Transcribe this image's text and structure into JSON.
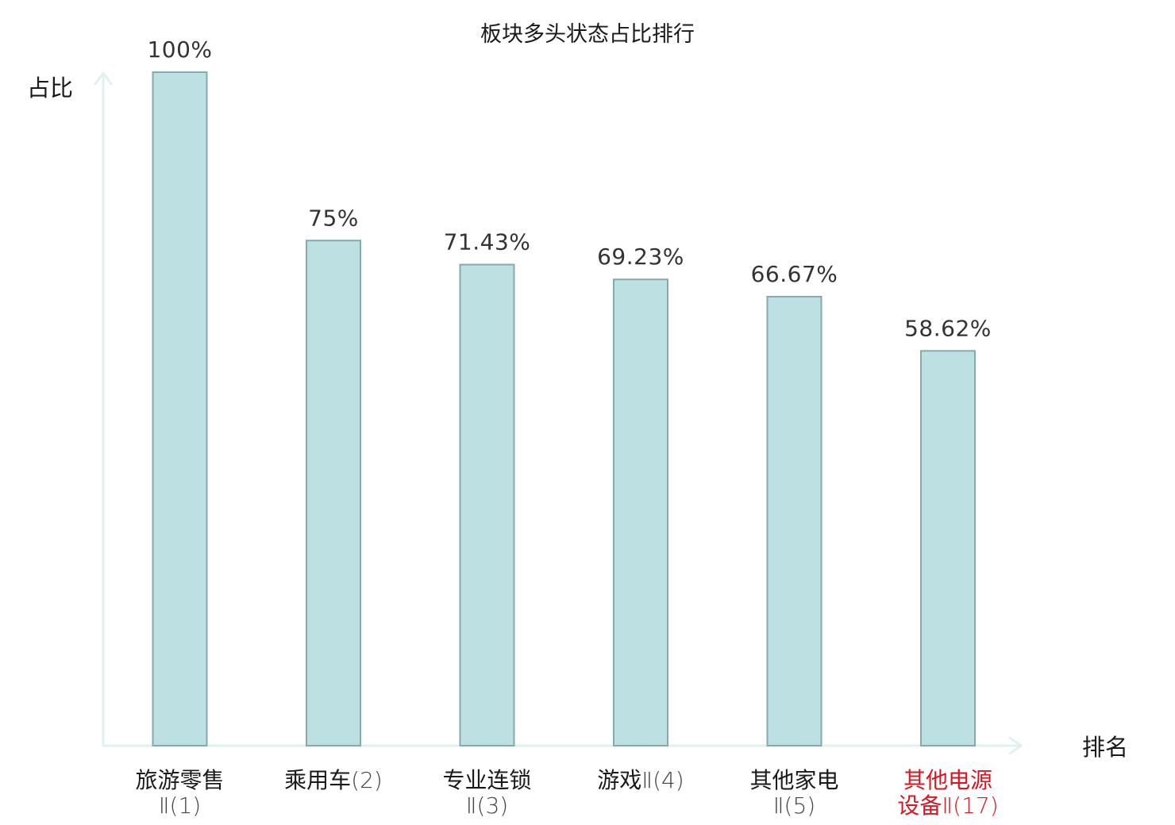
{
  "chart_data": {
    "type": "bar",
    "title": "板块多头状态占比排行",
    "ylabel": "占比",
    "xlabel": "排名",
    "ylim": [
      0,
      100
    ],
    "grid": false,
    "categories": [
      {
        "lines": [
          {
            "main": "旅游零售",
            "suffix": ""
          },
          {
            "main": "",
            "suffix": "Ⅱ(1)"
          }
        ],
        "highlight": false
      },
      {
        "lines": [
          {
            "main": "乘用车",
            "suffix": "(2)"
          }
        ],
        "highlight": false
      },
      {
        "lines": [
          {
            "main": "专业连锁",
            "suffix": ""
          },
          {
            "main": "",
            "suffix": "Ⅱ(3)"
          }
        ],
        "highlight": false
      },
      {
        "lines": [
          {
            "main": "游戏",
            "suffix": "Ⅱ(4)"
          }
        ],
        "highlight": false
      },
      {
        "lines": [
          {
            "main": "其他家电",
            "suffix": ""
          },
          {
            "main": "",
            "suffix": "Ⅱ(5)"
          }
        ],
        "highlight": false
      },
      {
        "lines": [
          {
            "main": "其他电源",
            "suffix": ""
          },
          {
            "main": "设备",
            "suffix": "Ⅱ(17)"
          }
        ],
        "highlight": true
      }
    ],
    "values": [
      100,
      75,
      71.43,
      69.23,
      66.67,
      58.62
    ],
    "value_labels": [
      "100%",
      "75%",
      "71.43%",
      "69.23%",
      "66.67%",
      "58.62%"
    ],
    "colors": {
      "bar_fill": "#bde0e3",
      "bar_stroke": "#86a9ac",
      "axis": "#dff2ef",
      "highlight": "#e0141e"
    }
  }
}
